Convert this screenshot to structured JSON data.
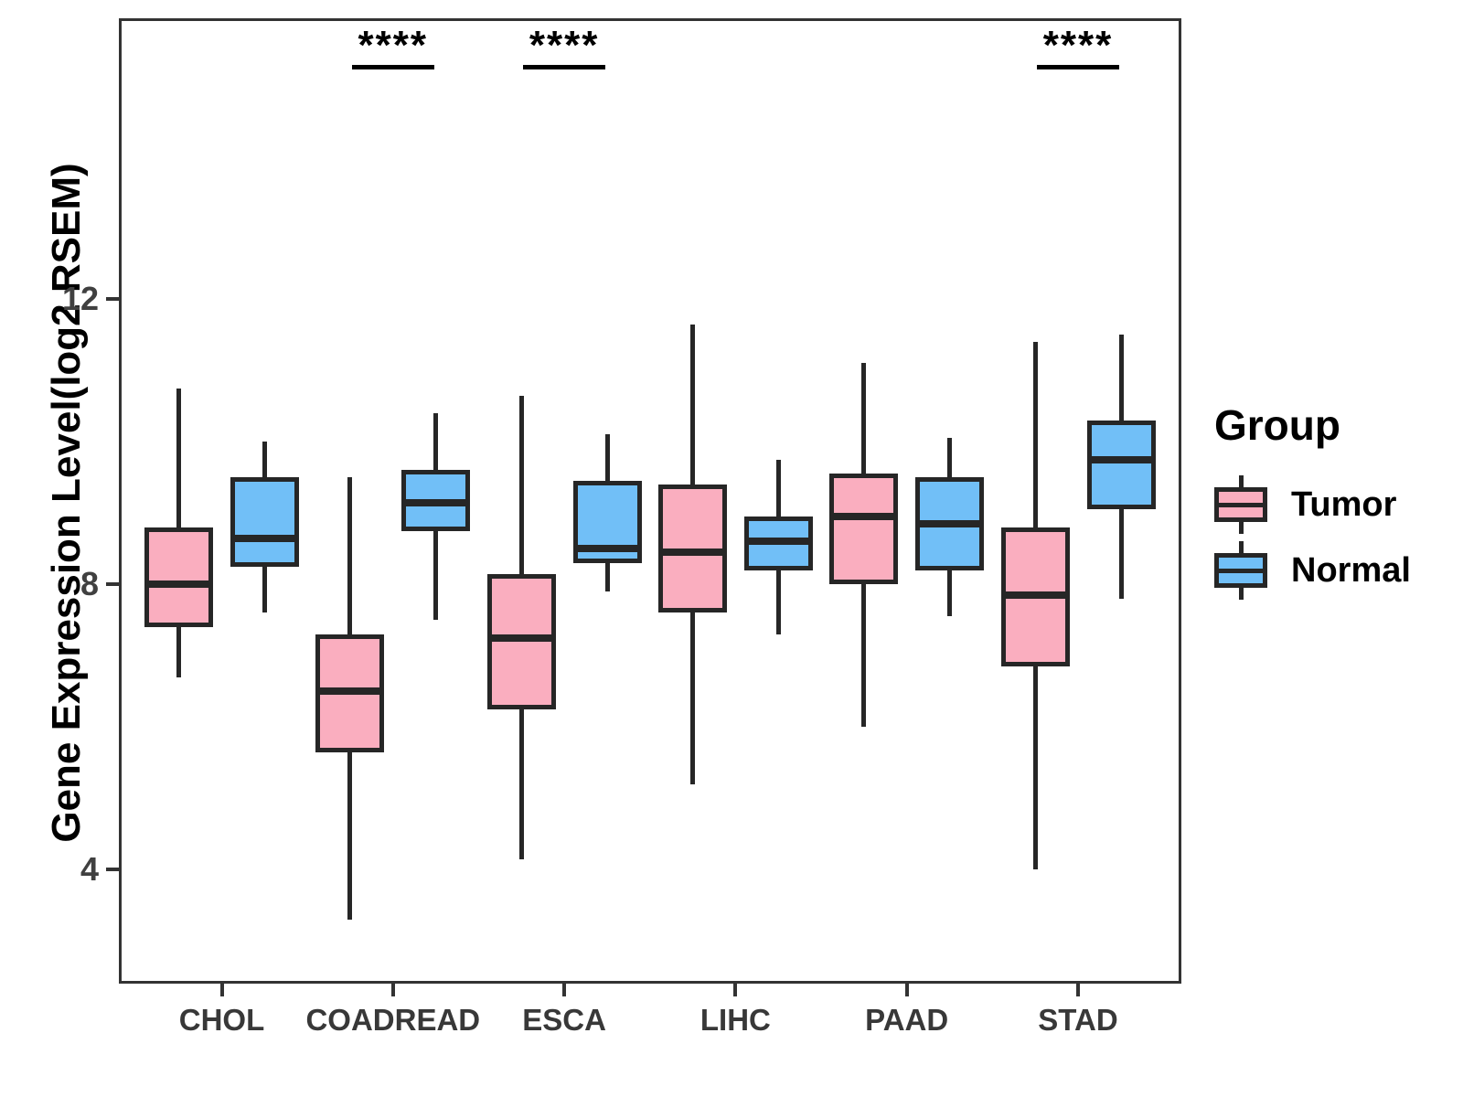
{
  "figure": {
    "legend": {
      "title": "Group",
      "items": [
        {
          "label": "Tumor",
          "color": "#FAAEBF"
        },
        {
          "label": "Normal",
          "color": "#71BFF7"
        }
      ]
    }
  },
  "chart_data": {
    "type": "boxplot",
    "title": "",
    "xlabel": "",
    "ylabel": "Gene Expression Level(log2 RSEM)",
    "categories": [
      "CHOL",
      "COADREAD",
      "ESCA",
      "LIHC",
      "PAAD",
      "STAD"
    ],
    "ylim": [
      2.4,
      15.94
    ],
    "yticks": [
      4,
      8,
      12
    ],
    "grid": false,
    "legend_position": "right",
    "stroke_color": "#262626",
    "series": [
      {
        "name": "Tumor",
        "color": "#FAAEBF",
        "boxes": [
          {
            "category": "CHOL",
            "whisker_low": 6.7,
            "q1": 7.4,
            "median": 8.0,
            "q3": 8.8,
            "whisker_high": 10.75
          },
          {
            "category": "COADREAD",
            "whisker_low": 3.3,
            "q1": 5.65,
            "median": 6.5,
            "q3": 7.3,
            "whisker_high": 9.5
          },
          {
            "category": "ESCA",
            "whisker_low": 4.15,
            "q1": 6.25,
            "median": 7.25,
            "q3": 8.15,
            "whisker_high": 10.65
          },
          {
            "category": "LIHC",
            "whisker_low": 5.2,
            "q1": 7.6,
            "median": 8.45,
            "q3": 9.4,
            "whisker_high": 11.65
          },
          {
            "category": "PAAD",
            "whisker_low": 6.0,
            "q1": 8.0,
            "median": 8.95,
            "q3": 9.55,
            "whisker_high": 11.1
          },
          {
            "category": "STAD",
            "whisker_low": 4.0,
            "q1": 6.85,
            "median": 7.85,
            "q3": 8.8,
            "whisker_high": 11.4
          }
        ]
      },
      {
        "name": "Normal",
        "color": "#71BFF7",
        "boxes": [
          {
            "category": "CHOL",
            "whisker_low": 7.6,
            "q1": 8.25,
            "median": 8.65,
            "q3": 9.5,
            "whisker_high": 10.0
          },
          {
            "category": "COADREAD",
            "whisker_low": 7.5,
            "q1": 8.75,
            "median": 9.15,
            "q3": 9.6,
            "whisker_high": 10.4
          },
          {
            "category": "ESCA",
            "whisker_low": 7.9,
            "q1": 8.3,
            "median": 8.5,
            "q3": 9.45,
            "whisker_high": 10.1
          },
          {
            "category": "LIHC",
            "whisker_low": 7.3,
            "q1": 8.2,
            "median": 8.6,
            "q3": 8.95,
            "whisker_high": 9.75
          },
          {
            "category": "PAAD",
            "whisker_low": 7.55,
            "q1": 8.2,
            "median": 8.85,
            "q3": 9.5,
            "whisker_high": 10.05
          },
          {
            "category": "STAD",
            "whisker_low": 7.8,
            "q1": 9.05,
            "median": 9.75,
            "q3": 10.3,
            "whisker_high": 11.5
          }
        ]
      }
    ],
    "significance": [
      {
        "category": "COADREAD",
        "label": "****"
      },
      {
        "category": "ESCA",
        "label": "****"
      },
      {
        "category": "STAD",
        "label": "****"
      }
    ]
  }
}
